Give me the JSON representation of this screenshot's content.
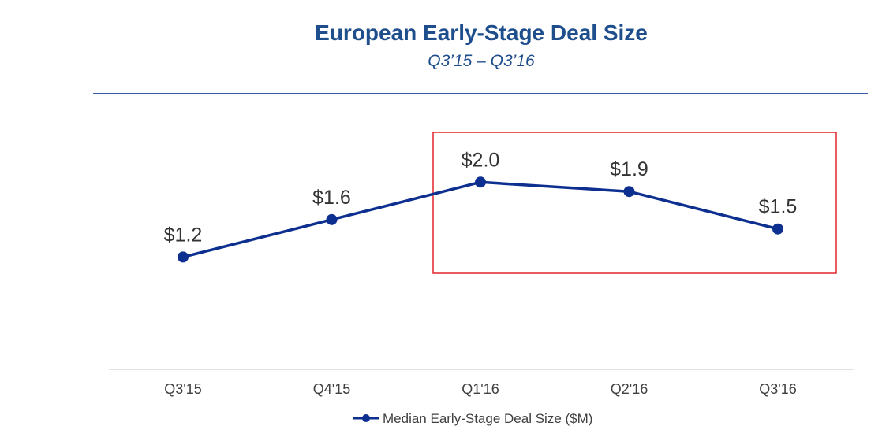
{
  "chart_data": {
    "type": "line",
    "title": "European Early-Stage Deal Size",
    "subtitle": "Q3’15 – Q3’16",
    "categories": [
      "Q3'15",
      "Q4'15",
      "Q1'16",
      "Q2'16",
      "Q3'16"
    ],
    "series": [
      {
        "name": "Median Early-Stage Deal Size ($M)",
        "values": [
          1.2,
          1.6,
          2.0,
          1.9,
          1.5
        ],
        "labels": [
          "$1.2",
          "$1.6",
          "$2.0",
          "$1.9",
          "$1.5"
        ],
        "color": "#0d2f8f"
      }
    ],
    "ylim": [
      0,
      2.6
    ],
    "xlabel": "",
    "ylabel": "",
    "grid": false,
    "legend": "bottom-center",
    "highlight": {
      "from_category": "Q1'16",
      "to_category": "Q3'16",
      "color": "#e0262c"
    }
  }
}
